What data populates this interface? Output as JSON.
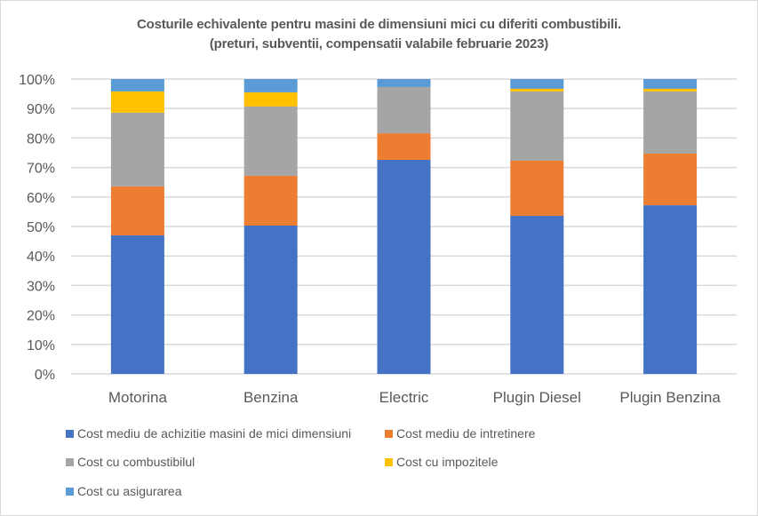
{
  "chart_data": {
    "type": "bar",
    "stacked": true,
    "percent_stacked": true,
    "title": "Costurile echivalente pentru masini de dimensiuni mici cu diferiti combustibili.",
    "subtitle": "(preturi, subventii, compensatii valabile februarie 2023)",
    "xlabel": "",
    "ylabel": "",
    "categories": [
      "Motorina",
      "Benzina",
      "Electric",
      "Plugin Diesel",
      "Plugin Benzina"
    ],
    "series": [
      {
        "name": "Cost mediu de achizitie masini de mici dimensiuni",
        "color": "#4472C4",
        "values": [
          47.0,
          50.3,
          72.6,
          53.6,
          57.2
        ]
      },
      {
        "name": "Cost mediu de intretinere",
        "color": "#ED7D31",
        "values": [
          16.6,
          16.9,
          9.0,
          18.7,
          17.5
        ]
      },
      {
        "name": "Cost cu combustibilul",
        "color": "#A5A5A5",
        "values": [
          25.0,
          23.5,
          15.7,
          23.5,
          21.1
        ]
      },
      {
        "name": "Cost cu impozitele",
        "color": "#FFC000",
        "values": [
          7.2,
          4.8,
          0.0,
          0.9,
          0.9
        ]
      },
      {
        "name": "Cost cu asigurarea",
        "color": "#5B9BD5",
        "values": [
          4.2,
          4.5,
          2.7,
          3.3,
          3.3
        ]
      }
    ],
    "yticks": [
      "0%",
      "10%",
      "20%",
      "30%",
      "40%",
      "50%",
      "60%",
      "70%",
      "80%",
      "90%",
      "100%"
    ],
    "ylim": [
      0,
      100
    ],
    "grid": true,
    "legend_position": "bottom"
  }
}
